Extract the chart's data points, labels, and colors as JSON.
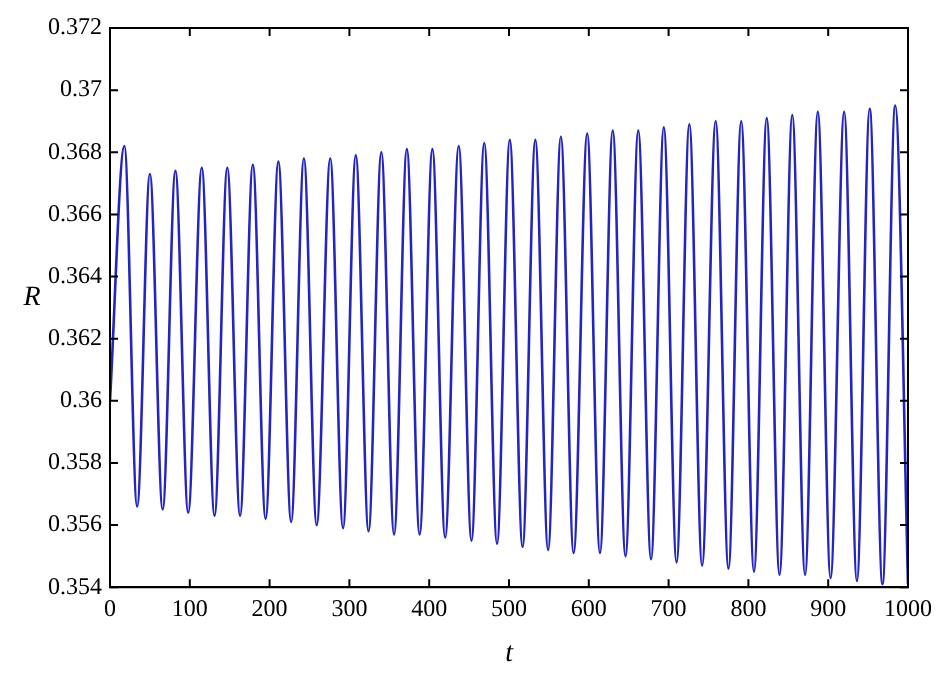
{
  "chart_data": {
    "type": "line",
    "xlabel": "t",
    "ylabel": "R",
    "x": [
      0,
      18,
      34,
      50,
      66,
      82,
      98,
      115,
      131,
      147,
      163,
      179,
      195,
      211,
      227,
      243,
      259,
      276,
      292,
      308,
      324,
      340,
      356,
      372,
      388,
      404,
      420,
      437,
      453,
      469,
      485,
      501,
      517,
      533,
      549,
      565,
      581,
      598,
      614,
      630,
      646,
      662,
      678,
      694,
      710,
      726,
      742,
      759,
      775,
      791,
      807,
      823,
      839,
      855,
      871,
      887,
      903,
      920,
      936,
      952,
      968,
      984,
      1000
    ],
    "series": [
      {
        "color": "#2424c0",
        "values": [
          0.36,
          0.3682,
          0.3566,
          0.3673,
          0.3565,
          0.3674,
          0.3564,
          0.3675,
          0.3563,
          0.3675,
          0.3563,
          0.3676,
          0.3562,
          0.3677,
          0.3561,
          0.3678,
          0.356,
          0.3678,
          0.3559,
          0.3679,
          0.3558,
          0.368,
          0.3557,
          0.3681,
          0.3557,
          0.3681,
          0.3556,
          0.3682,
          0.3555,
          0.3683,
          0.3554,
          0.3684,
          0.3553,
          0.3684,
          0.3552,
          0.3685,
          0.3551,
          0.3686,
          0.3551,
          0.3687,
          0.355,
          0.3687,
          0.3549,
          0.3688,
          0.3548,
          0.3689,
          0.3547,
          0.369,
          0.3546,
          0.369,
          0.3545,
          0.3691,
          0.3544,
          0.3692,
          0.3544,
          0.3693,
          0.3543,
          0.3693,
          0.3542,
          0.3694,
          0.3541,
          0.3695,
          0.3541
        ]
      }
    ],
    "xlim": [
      0,
      1000
    ],
    "xticks": [
      0,
      100,
      200,
      300,
      400,
      500,
      600,
      700,
      800,
      900,
      1000
    ],
    "ylim": [
      0.354,
      0.372
    ],
    "yticks": [
      0.354,
      0.356,
      0.358,
      0.36,
      0.362,
      0.364,
      0.366,
      0.368,
      0.37,
      0.372
    ],
    "grid": false,
    "legend": false,
    "marker": "none",
    "line_style": "solid"
  }
}
